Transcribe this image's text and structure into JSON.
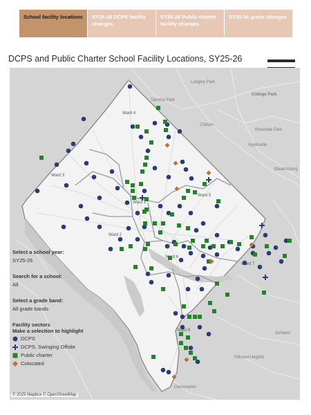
{
  "tabs": [
    {
      "label": "School facility locations",
      "active": true
    },
    {
      "label": "SY25-26 DCPS facility changes",
      "active": false
    },
    {
      "label": "SY25-26 Public charter facility changes",
      "active": false
    },
    {
      "label": "SY25-26 grade changes",
      "active": false
    }
  ],
  "title": "DCPS and Public Charter School Facility Locations, SY25-26",
  "filters": {
    "school_year_label": "Select a school year:",
    "school_year_value": "SY25-26",
    "search_label": "Search for a school:",
    "search_value": "All",
    "grade_band_label": "Select a grade band:",
    "grade_band_value": "All grade bands"
  },
  "legend": {
    "title1": "Facility sectors",
    "title2": "Make a selection to highlight",
    "items": [
      {
        "label": "DCPS",
        "shape": "circle",
        "color": "#2b3c75"
      },
      {
        "label": "DCPS, Swinging Offsite",
        "shape": "plus",
        "color": "#2b3c75"
      },
      {
        "label": "Public charter",
        "shape": "square",
        "color": "#23822c"
      },
      {
        "label": "Colocated",
        "shape": "diamond",
        "color": "#b8743c"
      }
    ]
  },
  "map_labels": {
    "ward1": "Ward 1",
    "ward2": "Ward 2",
    "ward3": "Ward 3",
    "ward4": "Ward 4",
    "ward5": "Ward 5",
    "ward6": "Ward 6",
    "ward7": "Ward 7",
    "ward8": "Ward 8",
    "langley_park": "Langley Park",
    "college_park": "College Park",
    "riverdale_park": "Riverdale Park",
    "hyattsville": "Hyattsville",
    "bladensburg": "Bladensburg",
    "chillum": "Chillum",
    "takoma_park": "Takoma Park",
    "suitland": "Suitland",
    "hillcrest_heights": "Hillcrest Heights",
    "glassmanor": "Glassmanor"
  },
  "attribution": "© 2025 Mapbox © OpenStreetMap"
}
